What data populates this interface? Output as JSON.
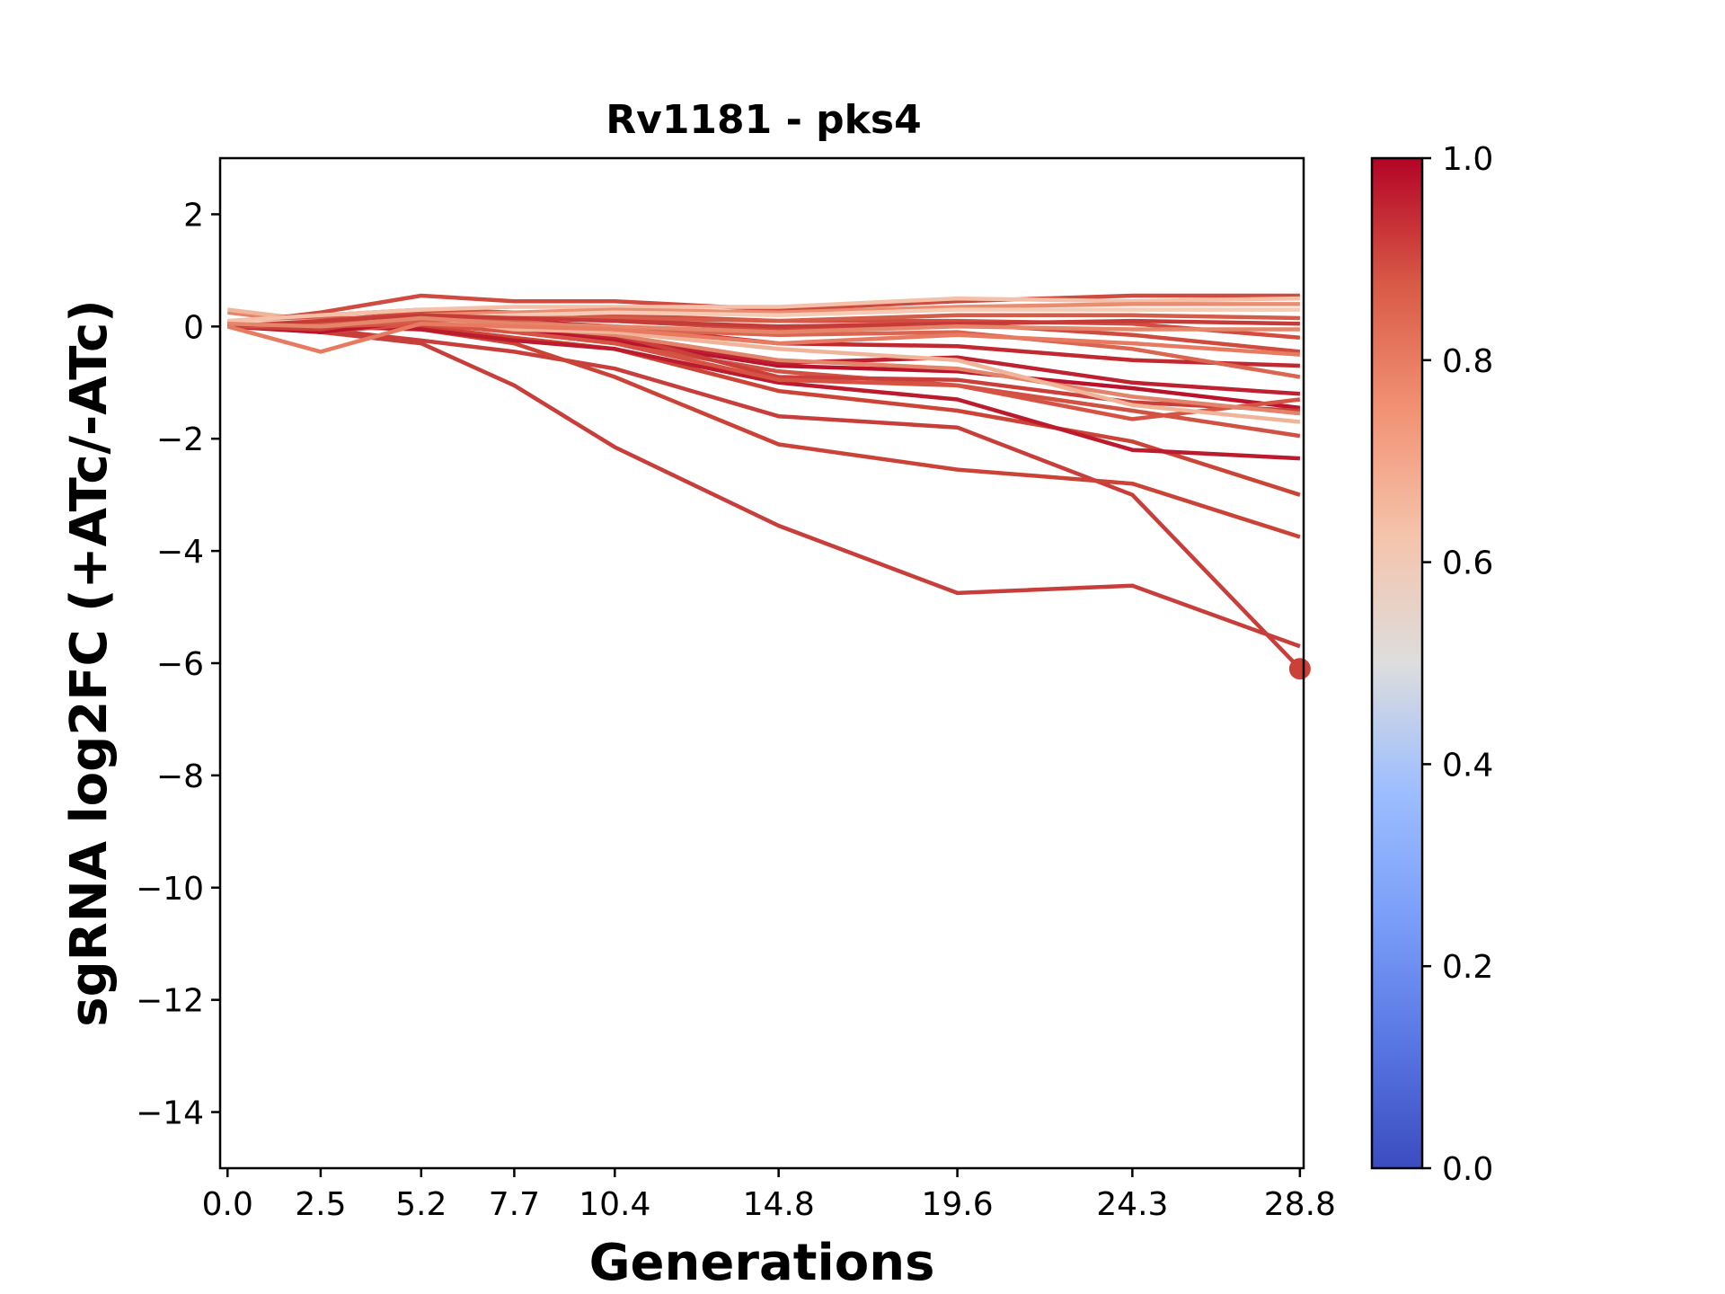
{
  "chart_data": {
    "type": "line",
    "title": "Rv1181 - pks4",
    "xlabel": "Generations",
    "ylabel": "sgRNA log2FC (+ATc/-ATc)",
    "x": [
      0.0,
      2.5,
      5.2,
      7.7,
      10.4,
      14.8,
      19.6,
      24.3,
      28.8
    ],
    "xticklabels": [
      "0.0",
      "2.5",
      "5.2",
      "7.7",
      "10.4",
      "14.8",
      "19.6",
      "24.3",
      "28.8"
    ],
    "xlim": [
      -0.2,
      28.9
    ],
    "ylim": [
      -15,
      3
    ],
    "yticks": [
      2,
      0,
      -2,
      -4,
      -6,
      -8,
      -10,
      -12,
      -14
    ],
    "yticklabels": [
      "2",
      "0",
      "−2",
      "−4",
      "−6",
      "−8",
      "−10",
      "−12",
      "−14"
    ],
    "grid": false,
    "colorbar": {
      "colormap": "coolwarm",
      "range": [
        0.0,
        1.0
      ],
      "ticks": [
        0.0,
        0.2,
        0.4,
        0.6,
        0.8,
        1.0
      ],
      "ticklabels": [
        "0.0",
        "0.2",
        "0.4",
        "0.6",
        "0.8",
        "1.0"
      ],
      "stops": [
        {
          "v": 0.0,
          "color": "#3b4cc0"
        },
        {
          "v": 0.125,
          "color": "#5977e3"
        },
        {
          "v": 0.25,
          "color": "#7b9ff9"
        },
        {
          "v": 0.375,
          "color": "#9ebeff"
        },
        {
          "v": 0.5,
          "color": "#dddddd"
        },
        {
          "v": 0.625,
          "color": "#f5c4ac"
        },
        {
          "v": 0.75,
          "color": "#f29274"
        },
        {
          "v": 0.875,
          "color": "#d85a47"
        },
        {
          "v": 1.0,
          "color": "#b40426"
        }
      ]
    },
    "series": [
      {
        "values": [
          0.05,
          -0.1,
          -0.3,
          -1.05,
          -2.15,
          -3.55,
          -4.75,
          -4.62,
          -5.7
        ],
        "color": "#c83e3a"
      },
      {
        "values": [
          0.0,
          -0.05,
          -0.25,
          -0.45,
          -0.75,
          -1.6,
          -1.8,
          -3.0,
          -6.1
        ],
        "color": "#c83e3a"
      },
      {
        "values": [
          0.0,
          0.0,
          -0.05,
          -0.3,
          -0.9,
          -2.1,
          -2.55,
          -2.8,
          -3.75
        ],
        "color": "#cb4336"
      },
      {
        "values": [
          0.05,
          0.05,
          0.0,
          -0.2,
          -0.4,
          -1.15,
          -1.5,
          -2.05,
          -3.0
        ],
        "color": "#cc4435"
      },
      {
        "values": [
          0.0,
          0.0,
          -0.05,
          -0.25,
          -0.4,
          -1.0,
          -1.3,
          -2.2,
          -2.35
        ],
        "color": "#bb1b2d"
      },
      {
        "values": [
          0.05,
          -0.1,
          0.05,
          -0.1,
          -0.3,
          -0.8,
          -1.05,
          -1.5,
          -1.95
        ],
        "color": "#d05243"
      },
      {
        "values": [
          0.0,
          -0.1,
          0.1,
          -0.05,
          -0.25,
          -0.7,
          -0.8,
          -1.1,
          -1.45
        ],
        "color": "#b9142b"
      },
      {
        "values": [
          0.05,
          0.0,
          0.15,
          0.0,
          -0.2,
          -0.65,
          -0.55,
          -1.0,
          -1.2
        ],
        "color": "#be2130"
      },
      {
        "values": [
          0.0,
          -0.05,
          0.2,
          0.05,
          -0.15,
          -0.9,
          -0.95,
          -1.35,
          -1.5
        ],
        "color": "#ca3f3a"
      },
      {
        "values": [
          0.1,
          0.0,
          0.05,
          -0.1,
          -0.3,
          -0.95,
          -1.05,
          -1.65,
          -1.3
        ],
        "color": "#d65344"
      },
      {
        "values": [
          0.25,
          0.05,
          0.1,
          0.0,
          -0.15,
          -0.6,
          -0.75,
          -1.25,
          -1.55
        ],
        "color": "#e3836a"
      },
      {
        "values": [
          0.3,
          0.1,
          0.15,
          -0.05,
          -0.1,
          -0.4,
          -0.6,
          -1.4,
          -1.7
        ],
        "color": "#f0b599"
      },
      {
        "values": [
          0.0,
          0.1,
          0.2,
          0.1,
          0.0,
          -0.3,
          -0.35,
          -0.6,
          -0.7
        ],
        "color": "#c1282f"
      },
      {
        "values": [
          0.0,
          0.15,
          0.15,
          0.1,
          -0.05,
          -0.15,
          -0.1,
          -0.4,
          -0.9
        ],
        "color": "#da6550"
      },
      {
        "values": [
          0.05,
          0.1,
          0.25,
          0.2,
          0.1,
          -0.05,
          0.05,
          -0.15,
          -0.45
        ],
        "color": "#cf4b3e"
      },
      {
        "values": [
          0.0,
          0.2,
          0.3,
          0.25,
          0.2,
          0.1,
          0.1,
          0.05,
          -0.2
        ],
        "color": "#d24c40"
      },
      {
        "values": [
          0.05,
          0.25,
          0.55,
          0.45,
          0.45,
          0.3,
          0.45,
          0.55,
          0.55
        ],
        "color": "#cf4a3f"
      },
      {
        "values": [
          0.1,
          0.2,
          0.3,
          0.35,
          0.35,
          0.35,
          0.5,
          0.45,
          0.5
        ],
        "color": "#f4c1a8"
      },
      {
        "values": [
          0.0,
          0.1,
          0.2,
          0.25,
          0.3,
          0.25,
          0.35,
          0.4,
          0.4
        ],
        "color": "#e98c70"
      },
      {
        "values": [
          0.05,
          0.1,
          0.15,
          0.2,
          0.25,
          0.2,
          0.3,
          0.3,
          0.3
        ],
        "color": "#f6cbb5"
      },
      {
        "values": [
          0.0,
          0.05,
          0.1,
          0.15,
          0.15,
          0.1,
          0.2,
          0.2,
          0.15
        ],
        "color": "#d45d4a"
      },
      {
        "values": [
          0.0,
          0.1,
          0.2,
          0.15,
          0.1,
          0.0,
          0.05,
          0.1,
          0.05
        ],
        "color": "#c63a37"
      },
      {
        "values": [
          0.05,
          0.0,
          0.15,
          0.05,
          0.0,
          -0.1,
          0.0,
          -0.05,
          -0.05
        ],
        "color": "#e5866b"
      },
      {
        "values": [
          0.0,
          -0.45,
          0.05,
          0.0,
          -0.05,
          -0.3,
          -0.15,
          -0.3,
          -0.5
        ],
        "color": "#e77a60"
      }
    ],
    "markers": [
      {
        "x": 28.8,
        "y": -6.1,
        "color": "#cc4137"
      }
    ]
  }
}
